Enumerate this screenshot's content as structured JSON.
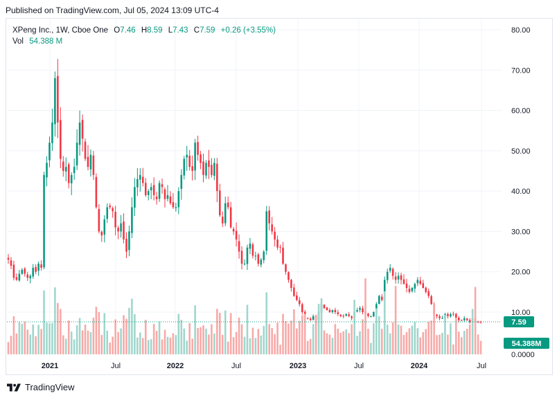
{
  "published_line": "Published on TradingView.com, Jul 05, 2024 13:09 UTC-4",
  "legend": {
    "symbol": "XPeng Inc., 1W, Cboe One",
    "o_label": "O",
    "o_val": "7.46",
    "h_label": "H",
    "h_val": "8.59",
    "l_label": "L",
    "l_val": "7.43",
    "c_label": "C",
    "c_val": "7.59",
    "change": "+0.26 (+3.55%)",
    "vol_label": "Vol",
    "vol_val": "54.388 M"
  },
  "footer": {
    "brand": "TradingView"
  },
  "colors": {
    "up": "#089981",
    "down": "#f23645",
    "vol_up": "#9fd6cc",
    "vol_down": "#f7a9a7",
    "grid": "#f0f3fa",
    "axis_text": "#131722"
  },
  "chart_data": {
    "type": "candlestick",
    "title": "XPeng Inc., 1W, Cboe One",
    "price_axis": {
      "ticks": [
        "80.00",
        "70.00",
        "60.00",
        "50.00",
        "40.00",
        "30.00",
        "20.00",
        "10.00"
      ],
      "range": [
        0,
        80
      ]
    },
    "volume_axis": {
      "ticks": [
        "0.0000"
      ]
    },
    "time_axis": {
      "ticks": [
        "2021",
        "Jul",
        "2022",
        "Jul",
        "2023",
        "Jul",
        "2024",
        "Jul"
      ]
    },
    "last_price_label": "7.59",
    "last_volume_label": "54.388M",
    "series": [
      {
        "name": "Close (approx.)",
        "values": [
          23,
          21.5,
          18.5,
          18,
          19.5,
          20.5,
          19.5,
          18.5,
          19,
          21,
          20,
          22,
          21,
          44,
          47,
          52,
          57,
          68,
          57,
          48,
          45,
          46,
          42,
          44,
          46,
          52,
          57,
          53,
          48,
          46,
          49,
          44,
          36,
          30,
          29,
          33,
          36,
          36,
          35,
          31,
          30,
          32,
          28,
          25,
          30,
          36,
          41,
          43,
          44,
          42,
          39,
          40,
          41,
          39,
          38,
          42,
          41,
          38,
          39,
          37,
          36,
          36,
          40,
          44,
          48,
          49,
          46,
          45,
          52,
          49,
          47,
          44,
          47,
          46,
          44,
          47,
          40,
          34,
          32,
          37,
          36,
          31,
          30,
          28,
          25,
          22,
          22,
          26,
          27,
          24,
          24,
          22,
          23,
          25,
          35,
          32,
          30,
          28,
          26,
          26,
          22,
          20,
          18,
          16,
          14,
          13,
          12,
          10,
          8.5,
          8.5,
          8,
          9,
          8,
          10,
          12,
          11,
          10.5,
          10,
          10.5,
          10,
          9.5,
          9,
          9,
          9.5,
          9,
          8.5,
          10,
          10.5,
          11,
          10,
          9.5,
          9,
          9,
          10,
          12,
          14,
          13,
          18,
          20,
          21,
          19,
          18,
          19,
          18,
          17,
          16,
          15,
          16,
          17,
          18,
          17,
          16,
          15,
          14,
          12,
          9.5,
          9,
          8.5,
          8.5,
          9.5,
          9,
          9.5,
          9.5,
          8.5,
          8,
          8,
          8.5,
          8,
          7.5,
          8.5,
          7.5,
          7.5,
          7.59
        ]
      }
    ]
  }
}
